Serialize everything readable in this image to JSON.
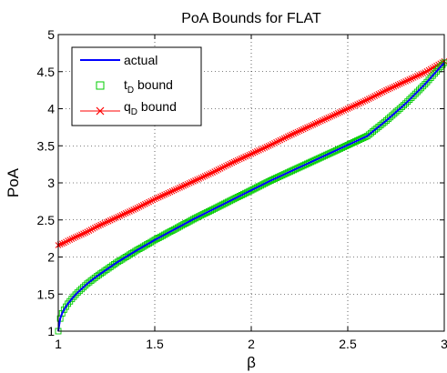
{
  "chart_data": {
    "type": "line",
    "title": "PoA Bounds for FLAT",
    "xlabel": "β",
    "ylabel": "PoA",
    "xlim": [
      1,
      3
    ],
    "ylim": [
      1,
      5
    ],
    "xticks": [
      "1",
      "1.5",
      "2",
      "2.5",
      "3"
    ],
    "yticks": [
      "1",
      "1.5",
      "2",
      "2.5",
      "3",
      "3.5",
      "4",
      "4.5",
      "5"
    ],
    "grid": true,
    "legend_position": "top-left",
    "x": [
      1.0,
      1.01,
      1.02,
      1.03,
      1.05,
      1.075,
      1.1,
      1.15,
      1.2,
      1.3,
      1.4,
      1.5,
      1.6,
      1.7,
      1.8,
      1.9,
      2.0,
      2.1,
      2.2,
      2.3,
      2.4,
      2.5,
      2.6,
      2.7,
      2.8,
      2.9,
      3.0
    ],
    "series": [
      {
        "name": "actual",
        "color": "#0000ff",
        "marker": "none",
        "values": [
          1.0,
          1.17,
          1.24,
          1.29,
          1.37,
          1.45,
          1.52,
          1.64,
          1.74,
          1.92,
          2.08,
          2.23,
          2.37,
          2.51,
          2.64,
          2.77,
          2.9,
          3.03,
          3.15,
          3.27,
          3.39,
          3.51,
          3.63,
          3.84,
          4.07,
          4.33,
          4.62
        ]
      },
      {
        "name": "t_D bound",
        "legend_main": "t",
        "legend_sub": "D",
        "legend_suffix": " bound",
        "color": "#00cc00",
        "marker": "square",
        "values": [
          1.0,
          1.17,
          1.24,
          1.29,
          1.37,
          1.45,
          1.52,
          1.64,
          1.74,
          1.92,
          2.08,
          2.23,
          2.37,
          2.51,
          2.64,
          2.77,
          2.9,
          3.03,
          3.15,
          3.27,
          3.39,
          3.51,
          3.63,
          3.84,
          4.07,
          4.33,
          4.62
        ]
      },
      {
        "name": "q_D bound",
        "legend_main": "q",
        "legend_sub": "D",
        "legend_suffix": " bound",
        "color": "#ff0000",
        "marker": "x",
        "values": [
          2.16,
          2.17,
          2.18,
          2.19,
          2.22,
          2.25,
          2.28,
          2.34,
          2.41,
          2.53,
          2.65,
          2.78,
          2.9,
          3.02,
          3.14,
          3.27,
          3.39,
          3.51,
          3.64,
          3.76,
          3.88,
          4.0,
          4.12,
          4.25,
          4.37,
          4.49,
          4.64
        ]
      }
    ]
  }
}
